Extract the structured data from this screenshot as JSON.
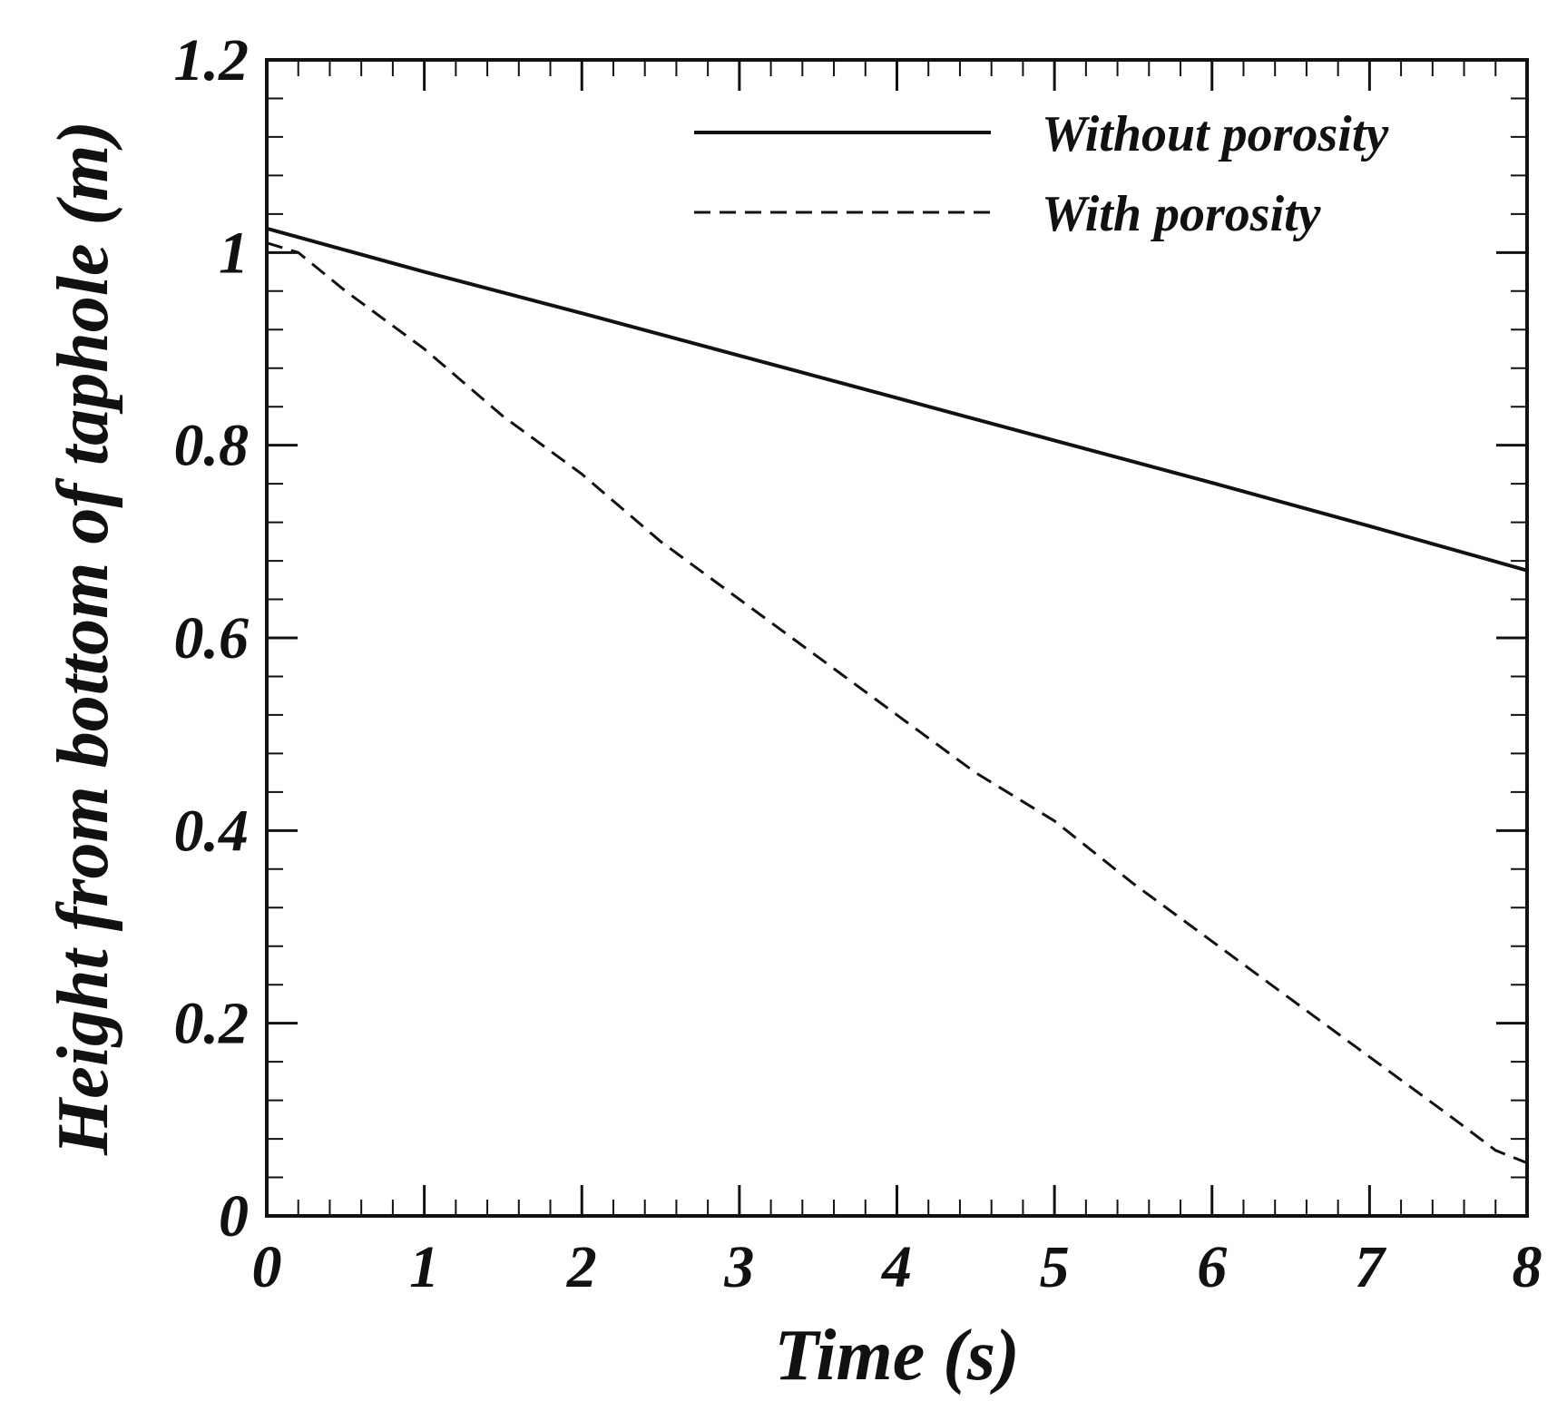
{
  "chart_data": {
    "type": "line",
    "title": "",
    "xlabel": "Time (s)",
    "ylabel": "Height from bottom of taphole (m)",
    "xlim": [
      0,
      8
    ],
    "ylim": [
      0,
      1.2
    ],
    "xticks": [
      0,
      1,
      2,
      3,
      4,
      5,
      6,
      7,
      8
    ],
    "xtick_labels": [
      "0",
      "1",
      "2",
      "3",
      "4",
      "5",
      "6",
      "7",
      "8"
    ],
    "yticks": [
      0,
      0.2,
      0.4,
      0.6,
      0.8,
      1.0,
      1.2
    ],
    "ytick_labels": [
      "0",
      "0.2",
      "0.4",
      "0.6",
      "0.8",
      "1",
      "1.2"
    ],
    "x_minor_step": 0.2,
    "y_minor_step": 0.04,
    "grid": false,
    "legend_position": "top-right",
    "series": [
      {
        "name": "Without porosity",
        "style": "solid",
        "color": "#111111",
        "x": [
          0,
          1,
          2,
          3,
          4,
          5,
          6,
          7,
          8
        ],
        "y": [
          1.025,
          0.98,
          0.937,
          0.893,
          0.849,
          0.805,
          0.761,
          0.716,
          0.67
        ]
      },
      {
        "name": "With porosity",
        "style": "dashed",
        "color": "#111111",
        "x": [
          0,
          0.2,
          0.5,
          1.0,
          1.5,
          2.0,
          2.5,
          3.0,
          3.5,
          4.0,
          4.5,
          5.0,
          5.5,
          6.0,
          6.5,
          7.0,
          7.5,
          7.8,
          8.0
        ],
        "y": [
          1.01,
          1.0,
          0.96,
          0.9,
          0.83,
          0.77,
          0.7,
          0.64,
          0.58,
          0.52,
          0.46,
          0.41,
          0.345,
          0.285,
          0.225,
          0.165,
          0.105,
          0.068,
          0.055
        ]
      }
    ]
  }
}
